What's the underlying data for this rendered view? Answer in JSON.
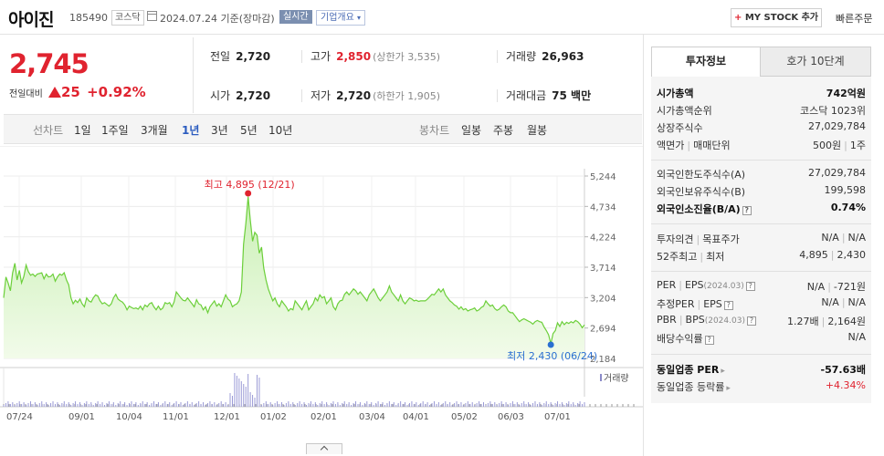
{
  "header": {
    "name": "아이진",
    "code": "185490",
    "market": "코스닥",
    "date": "2024.07.24 기준(장마감)",
    "realtime": "실시간",
    "company_overview": "기업개요",
    "mystock_plus": "+",
    "mystock_label": "MY STOCK 추가",
    "quick_order": "빠른주문"
  },
  "price": {
    "current": "2,745",
    "change_label": "전일대비",
    "change": "25",
    "change_pct": "+0.92%"
  },
  "stats": {
    "prev_label": "전일",
    "prev": "2,720",
    "high_label": "고가",
    "high": "2,850",
    "upper_limit": "(상한가 3,535)",
    "volume_label": "거래량",
    "volume": "26,963",
    "open_label": "시가",
    "open": "2,720",
    "low_label": "저가",
    "low": "2,720",
    "lower_limit": "(하한가 1,905)",
    "amount_label": "거래대금",
    "amount": "75 백만"
  },
  "periods": {
    "line_chart": "선차트",
    "items": [
      "1일",
      "1주일",
      "3개월",
      "1년",
      "3년",
      "5년",
      "10년"
    ],
    "selected": "1년",
    "candle_chart": "봉차트",
    "candle_items": [
      "일봉",
      "주봉",
      "월봉"
    ]
  },
  "chart_data": {
    "type": "area",
    "x_ticks": [
      "07/24",
      "09/01",
      "10/04",
      "11/01",
      "12/01",
      "01/02",
      "02/01",
      "03/04",
      "04/01",
      "05/02",
      "06/03",
      "07/01"
    ],
    "y_ticks": [
      5244,
      4734,
      4224,
      3714,
      3204,
      2694,
      2184
    ],
    "ylim": [
      2184,
      5244
    ],
    "high_label": "최고 4,895 (12/21)",
    "low_label": "최저 2,430 (06/24)",
    "volume_legend": "거래량",
    "series": [
      {
        "values": [
          3200,
          3550,
          3450,
          3320,
          3620,
          3780,
          3500,
          3660,
          3450,
          3560,
          3750,
          3640,
          3580,
          3600,
          3560,
          3600,
          3610,
          3620,
          3520,
          3600,
          3550,
          3560,
          3600,
          3480,
          3550,
          3600,
          3580,
          3620,
          3500,
          3420,
          3200,
          3100,
          3160,
          3120,
          3180,
          3100,
          3050,
          3200,
          3150,
          3130,
          3200,
          3250,
          3230,
          3150,
          3100,
          3120,
          3090,
          3060,
          3100,
          3200,
          3260,
          3180,
          3150,
          3130,
          3080,
          3000,
          3060,
          3040,
          3020,
          3030,
          3010,
          3060,
          3000,
          3080,
          3050,
          3100,
          3120,
          3050,
          3000,
          3060,
          3000,
          3030,
          3120,
          3100,
          3120,
          3050,
          3130,
          3300,
          3250,
          3200,
          3160,
          3150,
          3200,
          3150,
          3100,
          3050,
          3170,
          3100,
          3080,
          3000,
          3050,
          2950,
          3050,
          3100,
          3150,
          3060,
          3100,
          3050,
          3150,
          3250,
          3180,
          3150,
          3050,
          3080,
          3100,
          3150,
          3300,
          4100,
          4450,
          4895,
          4500,
          4150,
          4300,
          4250,
          3950,
          4050,
          3700,
          3500,
          3350,
          3250,
          3150,
          3200,
          3100,
          3050,
          3150,
          3100,
          3050,
          2980,
          3020,
          3000,
          3150,
          3100,
          3050,
          3000,
          3080,
          3150,
          3000,
          3050,
          3100,
          3200,
          3150,
          3250,
          3200,
          3220,
          3100,
          3150,
          3200,
          3050,
          3000,
          3100,
          3150,
          3160,
          3260,
          3300,
          3250,
          3300,
          3350,
          3320,
          3260,
          3300,
          3250,
          3200,
          3150,
          3250,
          3300,
          3350,
          3280,
          3200,
          3150,
          3200,
          3250,
          3300,
          3400,
          3300,
          3250,
          3200,
          3150,
          3250,
          3150,
          3100,
          3150,
          3200,
          3180,
          3150,
          3160,
          3140,
          3150,
          3150,
          3150,
          3180,
          3220,
          3260,
          3250,
          3300,
          3350,
          3300,
          3350,
          3250,
          3200,
          3150,
          3120,
          3080,
          3060,
          3010,
          3050,
          3000,
          3020,
          2980,
          3000,
          3010,
          3030,
          2980,
          3000,
          3040,
          3060,
          3150,
          3100,
          3060,
          3080,
          3020,
          2990,
          3010,
          3050,
          3080,
          3050,
          2980,
          2950,
          2950,
          2900,
          2850,
          2800,
          2830,
          2850,
          2830,
          2810,
          2790,
          2760,
          2800,
          2820,
          2800,
          2790,
          2710,
          2650,
          2580,
          2430,
          2600,
          2650,
          2780,
          2720,
          2800,
          2750,
          2790,
          2770,
          2800,
          2780,
          2820,
          2800,
          2760,
          2700,
          2745
        ]
      }
    ]
  },
  "side": {
    "tab_invest": "투자정보",
    "tab_quote": "호가 10단계",
    "market_cap_label": "시가총액",
    "market_cap": "742억원",
    "rank_label": "시가총액순위",
    "rank": "코스닥 1023위",
    "shares_label": "상장주식수",
    "shares": "27,029,784",
    "par_label": "액면가",
    "par_unit_label": "매매단위",
    "par": "500원",
    "unit": "1주",
    "foreign_limit_label": "외국인한도주식수(A)",
    "foreign_limit": "27,029,784",
    "foreign_hold_label": "외국인보유주식수(B)",
    "foreign_hold": "199,598",
    "foreign_rate_label": "외국인소진율(B/A)",
    "foreign_rate": "0.74%",
    "opinion_label": "투자의견",
    "target_label": "목표주가",
    "opinion": "N/A",
    "target": "N/A",
    "w52_label": "52주최고",
    "w52_low_label": "최저",
    "w52_high": "4,895",
    "w52_low": "2,430",
    "per_label": "PER",
    "eps_label": "EPS",
    "per_eps_date": "(2024.03)",
    "per": "N/A",
    "eps": "-721원",
    "est_per_label": "추정PER",
    "est_eps_label": "EPS",
    "est_per": "N/A",
    "est_eps": "N/A",
    "pbr_label": "PBR",
    "bps_label": "BPS",
    "pbr_bps_date": "(2024.03)",
    "pbr": "1.27배",
    "bps": "2,164원",
    "dividend_label": "배당수익률",
    "dividend": "N/A",
    "industry_per_label": "동일업종 PER",
    "industry_per": "-57.63배",
    "industry_rate_label": "동일업종 등락률",
    "industry_rate": "+4.34%"
  }
}
